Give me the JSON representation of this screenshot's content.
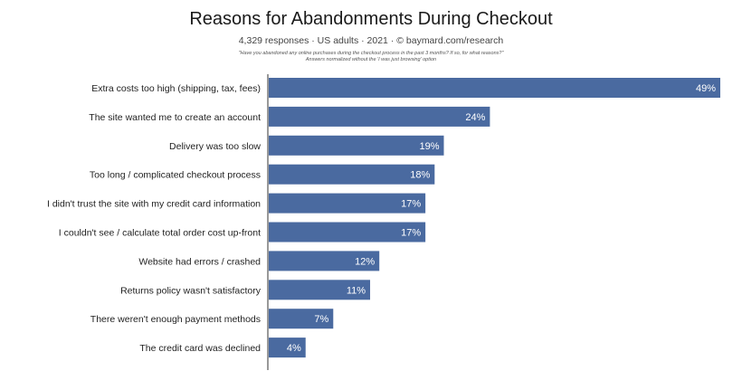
{
  "chart_data": {
    "type": "bar",
    "orientation": "horizontal",
    "title": "Reasons for Abandonments During Checkout",
    "subtitle": "4,329 responses  ·  US adults  ·  2021  ·  © baymard.com/research",
    "question_note": "\"Have you abandoned any online purchases during the checkout process in the past 3 months? If so, for what reasons?\"",
    "normalization_note": "Answers normalized without the 'I was just browsing' option",
    "categories": [
      "Extra costs too high (shipping, tax, fees)",
      "The site wanted me to create an account",
      "Delivery was too slow",
      "Too long / complicated checkout process",
      "I didn't trust the site with my credit card information",
      "I couldn't see / calculate total order cost up-front",
      "Website had errors / crashed",
      "Returns policy wasn't satisfactory",
      "There weren't enough payment methods",
      "The credit card was declined"
    ],
    "values": [
      49,
      24,
      19,
      18,
      17,
      17,
      12,
      11,
      7,
      4
    ],
    "value_labels": [
      "49%",
      "24%",
      "19%",
      "18%",
      "17%",
      "17%",
      "12%",
      "11%",
      "7%",
      "4%"
    ],
    "xlim": [
      0,
      49
    ],
    "grid": false,
    "bar_color": "#4a6aa0",
    "label_color": "#ffffff"
  }
}
